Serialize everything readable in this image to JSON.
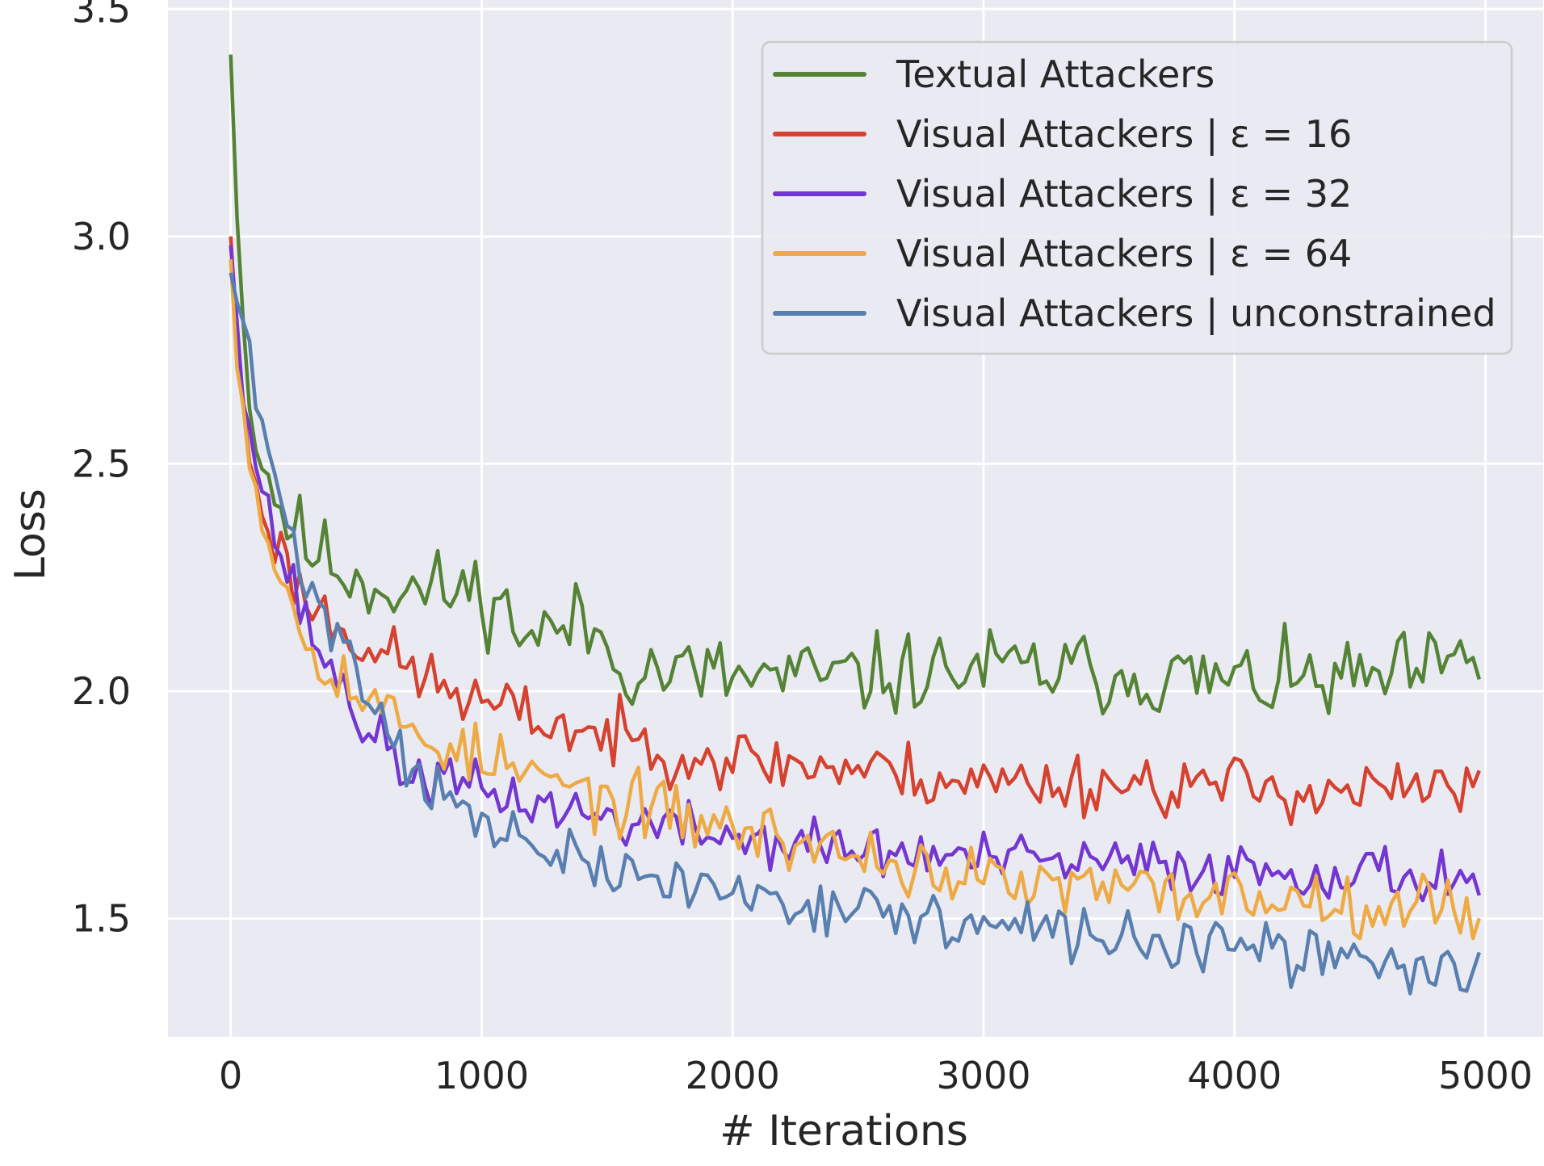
{
  "chart_data": {
    "type": "line",
    "title": "",
    "xlabel": "# Iterations",
    "ylabel": "Loss",
    "xlim": [
      -250,
      5230
    ],
    "ylim": [
      1.24,
      3.52
    ],
    "xticks": [
      0,
      1000,
      2000,
      3000,
      4000,
      5000
    ],
    "yticks": [
      1.5,
      2.0,
      2.5,
      3.0,
      3.5
    ],
    "xtick_labels": [
      "0",
      "1000",
      "2000",
      "3000",
      "4000",
      "5000"
    ],
    "ytick_labels": [
      "1.5",
      "2.0",
      "2.5",
      "3.0",
      "3.5"
    ],
    "grid": true,
    "legend_position": "top-right",
    "background_color": "#EAEAF2",
    "x_start": 0,
    "x_end": 4975,
    "n_points": 200,
    "series": [
      {
        "name": "Textual Attackers",
        "color": "#548335",
        "anchors": [
          [
            0,
            3.4
          ],
          [
            50,
            2.8
          ],
          [
            100,
            2.55
          ],
          [
            200,
            2.4
          ],
          [
            300,
            2.32
          ],
          [
            500,
            2.25
          ],
          [
            700,
            2.22
          ],
          [
            1000,
            2.22
          ],
          [
            1200,
            2.12
          ],
          [
            1400,
            2.15
          ],
          [
            1600,
            2.05
          ],
          [
            2000,
            2.03
          ],
          [
            2500,
            2.03
          ],
          [
            3000,
            2.05
          ],
          [
            3500,
            2.04
          ],
          [
            4000,
            2.02
          ],
          [
            4500,
            2.02
          ],
          [
            4975,
            2.06
          ]
        ],
        "noise": 0.045,
        "seed": 11
      },
      {
        "name": "Visual Attackers | ε = 16",
        "color": "#D5422F",
        "anchors": [
          [
            0,
            3.0
          ],
          [
            50,
            2.6
          ],
          [
            100,
            2.45
          ],
          [
            200,
            2.3
          ],
          [
            300,
            2.2
          ],
          [
            500,
            2.12
          ],
          [
            700,
            2.05
          ],
          [
            1000,
            1.97
          ],
          [
            1500,
            1.9
          ],
          [
            2000,
            1.85
          ],
          [
            2500,
            1.83
          ],
          [
            3000,
            1.8
          ],
          [
            3500,
            1.8
          ],
          [
            4000,
            1.79
          ],
          [
            4500,
            1.78
          ],
          [
            4975,
            1.78
          ]
        ],
        "noise": 0.035,
        "seed": 23
      },
      {
        "name": "Visual Attackers | ε = 32",
        "color": "#7436D1",
        "anchors": [
          [
            0,
            2.98
          ],
          [
            50,
            2.7
          ],
          [
            100,
            2.5
          ],
          [
            200,
            2.3
          ],
          [
            300,
            2.15
          ],
          [
            500,
            1.95
          ],
          [
            700,
            1.82
          ],
          [
            1000,
            1.78
          ],
          [
            1500,
            1.72
          ],
          [
            2000,
            1.68
          ],
          [
            2500,
            1.65
          ],
          [
            3000,
            1.63
          ],
          [
            3500,
            1.62
          ],
          [
            4000,
            1.61
          ],
          [
            4500,
            1.6
          ],
          [
            4975,
            1.59
          ]
        ],
        "noise": 0.03,
        "seed": 37
      },
      {
        "name": "Visual Attackers | ε = 64",
        "color": "#EDAA45",
        "anchors": [
          [
            0,
            2.95
          ],
          [
            50,
            2.62
          ],
          [
            100,
            2.45
          ],
          [
            200,
            2.25
          ],
          [
            300,
            2.12
          ],
          [
            500,
            2.0
          ],
          [
            700,
            1.92
          ],
          [
            1000,
            1.85
          ],
          [
            1500,
            1.76
          ],
          [
            2000,
            1.7
          ],
          [
            2500,
            1.64
          ],
          [
            3000,
            1.58
          ],
          [
            3500,
            1.56
          ],
          [
            4000,
            1.55
          ],
          [
            4500,
            1.54
          ],
          [
            4975,
            1.52
          ]
        ],
        "noise": 0.035,
        "seed": 53
      },
      {
        "name": "Visual Attackers | unconstrained",
        "color": "#587FAF",
        "anchors": [
          [
            0,
            2.92
          ],
          [
            50,
            2.8
          ],
          [
            100,
            2.65
          ],
          [
            200,
            2.4
          ],
          [
            300,
            2.25
          ],
          [
            500,
            2.05
          ],
          [
            700,
            1.85
          ],
          [
            1000,
            1.7
          ],
          [
            1500,
            1.6
          ],
          [
            2000,
            1.56
          ],
          [
            2500,
            1.52
          ],
          [
            3000,
            1.48
          ],
          [
            3500,
            1.46
          ],
          [
            4000,
            1.43
          ],
          [
            4500,
            1.41
          ],
          [
            4975,
            1.38
          ]
        ],
        "noise": 0.03,
        "seed": 71
      }
    ]
  }
}
